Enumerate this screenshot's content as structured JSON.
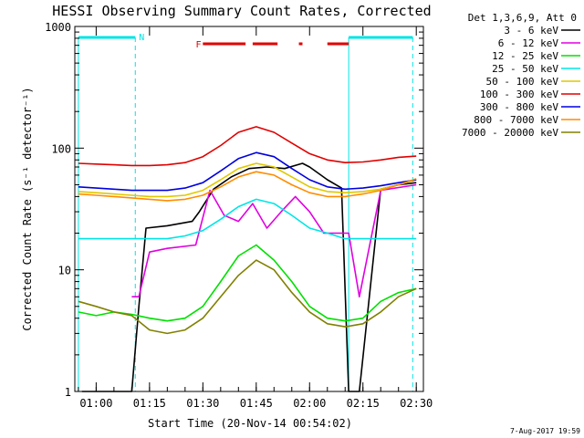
{
  "page": {
    "title": "HESSI Observing Summary Count Rates, Corrected",
    "footer_date": "7-Aug-2017 19:59"
  },
  "chart_data": {
    "type": "line",
    "title": "HESSI Observing Summary Count Rates, Corrected",
    "xlabel": "Start Time (20-Nov-14 00:54:02)",
    "ylabel": "Corrected Count Rate (s⁻¹ detector⁻¹)",
    "y_scale": "log",
    "ylim": [
      1,
      1000
    ],
    "xlim": [
      "00:54",
      "02:32"
    ],
    "x_ticks": [
      "01:00",
      "01:15",
      "01:30",
      "01:45",
      "02:00",
      "02:15",
      "02:30"
    ],
    "y_ticks": [
      "1",
      "10",
      "100",
      "1000"
    ],
    "legend_header": "Det 1,3,6,9, Att 0",
    "legend_placement": "right",
    "flag_markers": {
      "N": "N",
      "F": "F"
    },
    "colors": {
      "background": "#ffffff",
      "axes": "#000000",
      "flag_N": "#00e5e5",
      "flag_F": "#e00000"
    },
    "series": [
      {
        "name": "3 - 6 keV",
        "color": "#000000",
        "x": [
          "00:56",
          "01:10",
          "01:12",
          "01:14",
          "01:20",
          "01:27",
          "01:29",
          "01:33",
          "01:38",
          "01:43",
          "01:48",
          "01:53",
          "01:58",
          "02:00",
          "02:05",
          "02:09",
          "02:11",
          "02:14",
          "02:20",
          "02:25",
          "02:30"
        ],
        "y": [
          1.0,
          1.0,
          5.0,
          22,
          23,
          25,
          30,
          46,
          58,
          68,
          70,
          68,
          75,
          70,
          55,
          47,
          1.0,
          1.0,
          46,
          50,
          52
        ]
      },
      {
        "name": "6 - 12 keV",
        "color": "#e000e0",
        "x": [
          "01:10",
          "01:12",
          "01:15",
          "01:20",
          "01:28",
          "01:32",
          "01:36",
          "01:40",
          "01:44",
          "01:48",
          "01:52",
          "01:56",
          "02:00",
          "02:04",
          "02:08",
          "02:11",
          "02:14",
          "02:20",
          "02:30"
        ],
        "y": [
          6,
          6,
          14,
          15,
          16,
          45,
          28,
          25,
          35,
          22,
          30,
          40,
          30,
          20,
          20,
          20,
          6,
          45,
          50
        ]
      },
      {
        "name": "12 - 25 keV",
        "color": "#00e000",
        "x": [
          "00:55",
          "01:00",
          "01:05",
          "01:10",
          "01:15",
          "01:20",
          "01:25",
          "01:30",
          "01:35",
          "01:40",
          "01:45",
          "01:50",
          "01:55",
          "02:00",
          "02:05",
          "02:10",
          "02:15",
          "02:20",
          "02:25",
          "02:30"
        ],
        "y": [
          4.5,
          4.2,
          4.5,
          4.3,
          4.0,
          3.8,
          4.0,
          5.0,
          8,
          13,
          16,
          12,
          8,
          5,
          4,
          3.8,
          4.0,
          5.5,
          6.5,
          7.0
        ]
      },
      {
        "name": "25 - 50 keV",
        "color": "#00e5e5",
        "x": [
          "00:55",
          "01:00",
          "01:05",
          "01:10",
          "01:15",
          "01:20",
          "01:25",
          "01:30",
          "01:35",
          "01:40",
          "01:45",
          "01:50",
          "01:55",
          "02:00",
          "02:05",
          "02:10",
          "02:15",
          "02:20",
          "02:25",
          "02:30"
        ],
        "y": [
          18,
          18,
          18,
          18,
          18,
          18,
          19,
          21,
          26,
          33,
          38,
          35,
          28,
          22,
          20,
          18,
          18,
          18,
          18,
          18
        ]
      },
      {
        "name": "50 - 100 keV",
        "color": "#e0c800",
        "x": [
          "00:55",
          "01:00",
          "01:05",
          "01:10",
          "01:15",
          "01:20",
          "01:25",
          "01:30",
          "01:35",
          "01:40",
          "01:45",
          "01:50",
          "01:55",
          "02:00",
          "02:05",
          "02:10",
          "02:15",
          "02:20",
          "02:25",
          "02:30"
        ],
        "y": [
          44,
          43,
          42,
          41,
          40,
          40,
          41,
          45,
          55,
          68,
          75,
          70,
          58,
          48,
          44,
          43,
          44,
          46,
          50,
          55
        ]
      },
      {
        "name": "100 - 300 keV",
        "color": "#e00000",
        "x": [
          "00:55",
          "01:00",
          "01:05",
          "01:10",
          "01:15",
          "01:20",
          "01:25",
          "01:30",
          "01:35",
          "01:40",
          "01:45",
          "01:50",
          "01:55",
          "02:00",
          "02:05",
          "02:10",
          "02:15",
          "02:20",
          "02:25",
          "02:30"
        ],
        "y": [
          75,
          74,
          73,
          72,
          72,
          73,
          76,
          85,
          105,
          135,
          150,
          135,
          110,
          90,
          80,
          76,
          77,
          80,
          84,
          86
        ]
      },
      {
        "name": "300 - 800 keV",
        "color": "#0000e0",
        "x": [
          "00:55",
          "01:00",
          "01:05",
          "01:10",
          "01:15",
          "01:20",
          "01:25",
          "01:30",
          "01:35",
          "01:40",
          "01:45",
          "01:50",
          "01:55",
          "02:00",
          "02:05",
          "02:10",
          "02:15",
          "02:20",
          "02:25",
          "02:30"
        ],
        "y": [
          48,
          47,
          46,
          45,
          45,
          45,
          47,
          52,
          65,
          82,
          92,
          85,
          68,
          55,
          48,
          46,
          47,
          49,
          52,
          55
        ]
      },
      {
        "name": "800 - 7000 keV",
        "color": "#ff8c00",
        "x": [
          "00:55",
          "01:00",
          "01:05",
          "01:10",
          "01:15",
          "01:20",
          "01:25",
          "01:30",
          "01:35",
          "01:40",
          "01:45",
          "01:50",
          "01:55",
          "02:00",
          "02:05",
          "02:10",
          "02:15",
          "02:20",
          "02:25",
          "02:30"
        ],
        "y": [
          42,
          41,
          40,
          39,
          38,
          37,
          38,
          41,
          48,
          58,
          64,
          60,
          50,
          43,
          40,
          40,
          42,
          45,
          50,
          56
        ]
      },
      {
        "name": "7000 - 20000 keV",
        "color": "#808000",
        "x": [
          "00:55",
          "01:00",
          "01:05",
          "01:10",
          "01:15",
          "01:20",
          "01:25",
          "01:30",
          "01:35",
          "01:40",
          "01:45",
          "01:50",
          "01:55",
          "02:00",
          "02:05",
          "02:10",
          "02:15",
          "02:20",
          "02:25",
          "02:30"
        ],
        "y": [
          5.5,
          5.0,
          4.5,
          4.2,
          3.2,
          3.0,
          3.2,
          4.0,
          6.0,
          9.0,
          12,
          10,
          6.5,
          4.5,
          3.6,
          3.4,
          3.6,
          4.5,
          6.0,
          7.0
        ]
      }
    ]
  }
}
